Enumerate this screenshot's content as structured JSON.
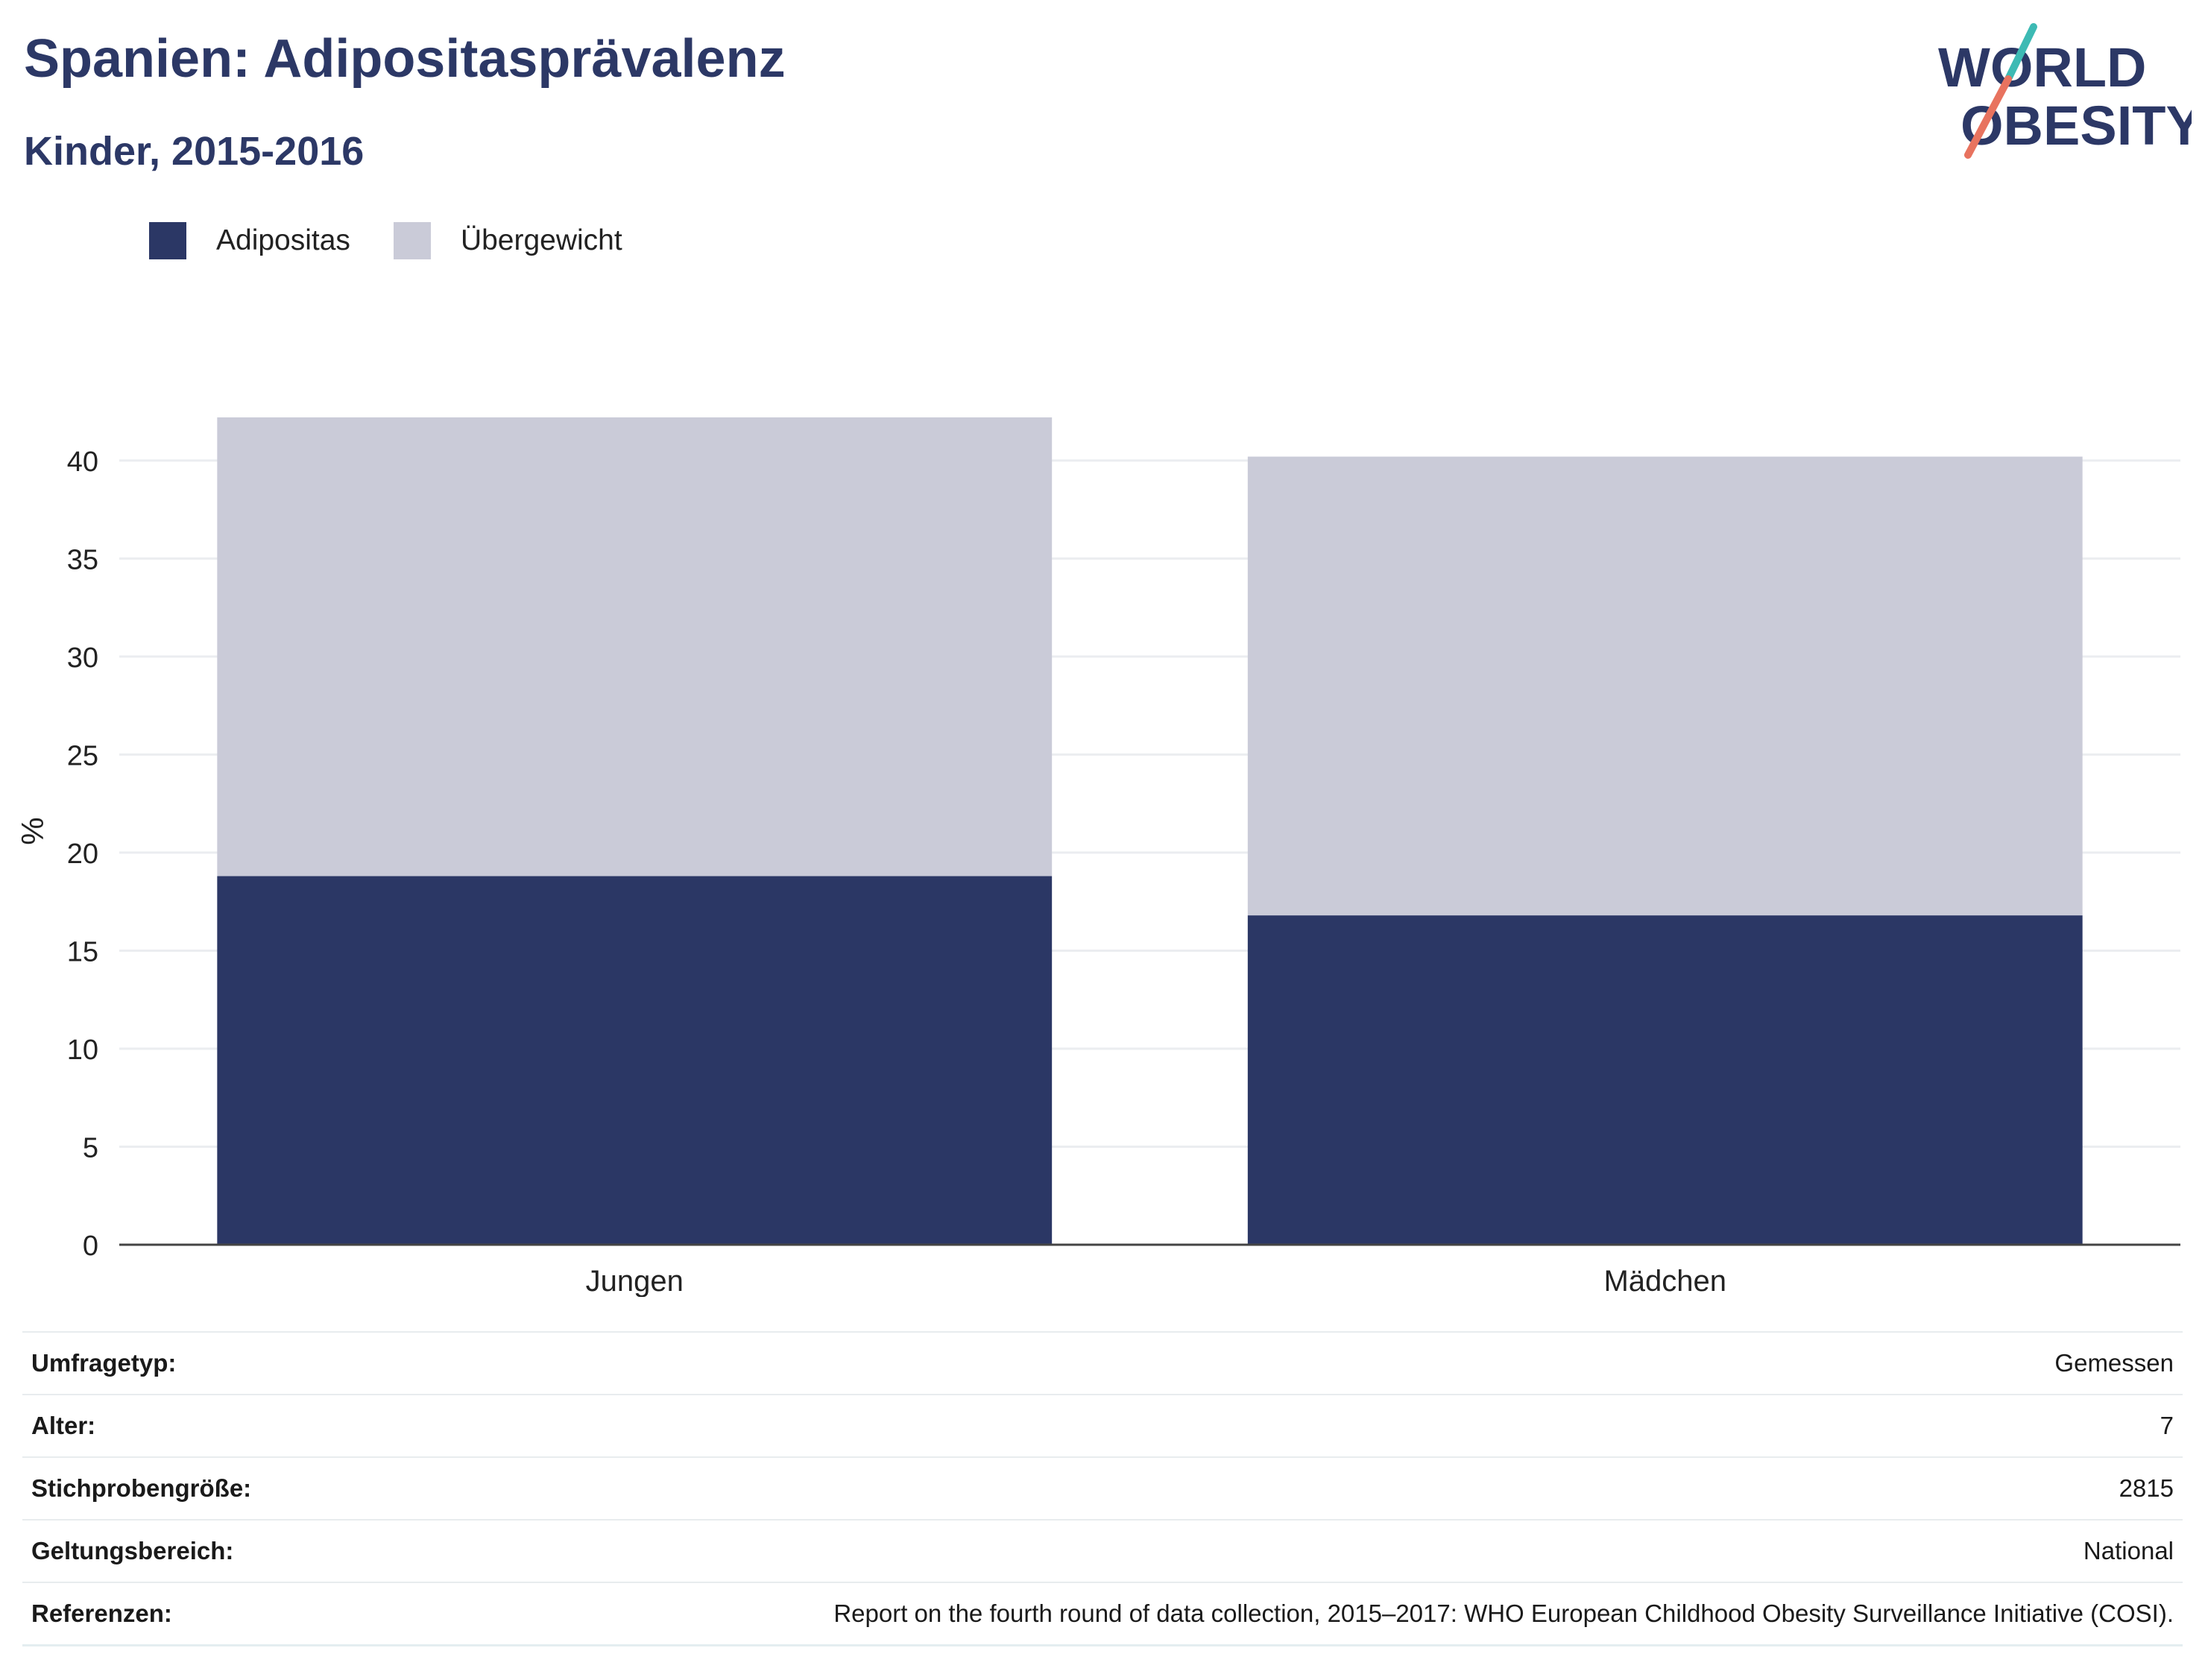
{
  "header": {
    "title": "Spanien: Adipositasprävalenz",
    "subtitle": "Kinder, 2015-2016"
  },
  "logo": {
    "line1": "WORLD",
    "line2": "OBESITY",
    "text_color": "#2c3866",
    "accent_teal": "#3dbab4",
    "accent_coral": "#e8735f"
  },
  "legend": [
    {
      "label": "Adipositas",
      "color": "#2b3765"
    },
    {
      "label": "Übergewicht",
      "color": "#cacbd8"
    }
  ],
  "chart_data": {
    "type": "bar",
    "stacked": true,
    "categories": [
      "Jungen",
      "Mädchen"
    ],
    "series": [
      {
        "name": "Adipositas",
        "values": [
          18.8,
          16.8
        ],
        "color": "#2b3765"
      },
      {
        "name": "Übergewicht",
        "values": [
          23.4,
          23.4
        ],
        "color": "#cacbd8"
      }
    ],
    "ylabel": "%",
    "xlabel": "",
    "ylim": [
      0,
      42.2
    ],
    "yticks": [
      0,
      5,
      10,
      15,
      20,
      25,
      30,
      35,
      40
    ],
    "grid": true,
    "legend_position": "top-left"
  },
  "info": [
    {
      "label": "Umfragetyp:",
      "value": "Gemessen"
    },
    {
      "label": "Alter:",
      "value": "7"
    },
    {
      "label": "Stichprobengröße:",
      "value": "2815"
    },
    {
      "label": "Geltungsbereich:",
      "value": "National"
    },
    {
      "label": "Referenzen:",
      "value": "Report on the fourth round of data collection, 2015–2017: WHO European Childhood Obesity Surveillance Initiative (COSI)."
    }
  ]
}
